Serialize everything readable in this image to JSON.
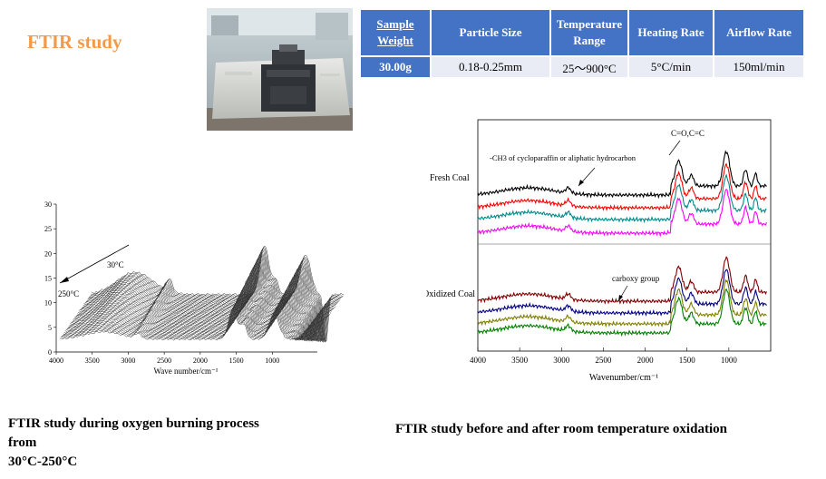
{
  "title": "FTIR study",
  "table": {
    "headers": [
      "Sample Weight",
      "Particle Size",
      "Temperature Range",
      "Heating Rate",
      "Airflow Rate"
    ],
    "values": [
      "30.00g",
      "0.18-0.25mm",
      "25～900°C",
      "5°C/min",
      "150ml/min"
    ]
  },
  "left_caption_lines": [
    "FTIR study during oxygen burning process",
    "from",
    "30°C-250°C"
  ],
  "right_caption": "FTIR study before and after room temperature oxidation",
  "chart_data": [
    {
      "type": "line",
      "title": "",
      "xlabel": "Wave number/cm⁻¹",
      "ylabel": "",
      "x_ticks": [
        "4000",
        "3500",
        "3000",
        "2500",
        "2000",
        "1500",
        "1000"
      ],
      "y_ticks": [
        "0",
        "5",
        "10",
        "15",
        "20",
        "25",
        "30"
      ],
      "xlim": [
        4000,
        500
      ],
      "ylim": [
        0,
        30
      ],
      "annotations": [
        "30°C",
        "250°C"
      ],
      "series_count": 45
    },
    {
      "type": "line",
      "title": "",
      "xlabel": "Wavenumber/cm⁻¹",
      "ylabel": "",
      "x_ticks": [
        "4000",
        "3500",
        "3000",
        "2500",
        "2000",
        "1500",
        "1000"
      ],
      "xlim": [
        4000,
        500
      ],
      "annotations": [
        "-CH3 of cycloparaffin or aliphatic hydrocarbon",
        "C=O,C=C",
        "carboxy group"
      ],
      "series": [
        {
          "group": "Fresh Coal",
          "color": "#000000"
        },
        {
          "group": "Fresh Coal",
          "color": "#ff0000"
        },
        {
          "group": "Fresh Coal",
          "color": "#008b8b"
        },
        {
          "group": "Fresh Coal",
          "color": "#ff00ff"
        },
        {
          "group": "Oxidized Coal",
          "color": "#800000"
        },
        {
          "group": "Oxidized Coal",
          "color": "#000080"
        },
        {
          "group": "Oxidized Coal",
          "color": "#808000"
        },
        {
          "group": "Oxidized Coal",
          "color": "#008000"
        }
      ],
      "group_labels": [
        "Fresh Coal",
        "Oxidized Coal"
      ]
    }
  ]
}
